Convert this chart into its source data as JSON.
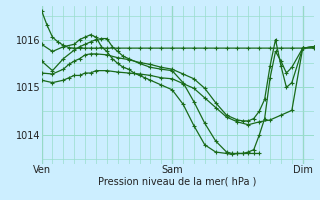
{
  "background_color": "#cceeff",
  "grid_color": "#99ddcc",
  "line_color": "#1a6b1a",
  "marker": "+",
  "marker_size": 3,
  "ylim": [
    1013.4,
    1016.7
  ],
  "yticks": [
    1014,
    1015,
    1016
  ],
  "xlabel": "Pression niveau de la mer( hPa )",
  "xtick_labels": [
    "Ven",
    "Sam",
    "Dim"
  ],
  "xtick_pos": [
    0,
    48,
    96
  ],
  "xlim": [
    0,
    100
  ],
  "vline_color": "#336633",
  "lines": [
    {
      "x": [
        0,
        2,
        4,
        6,
        8,
        10,
        12,
        14,
        16,
        18,
        20,
        24,
        28,
        32,
        36,
        40,
        44,
        48,
        52,
        56,
        60,
        64,
        68,
        72,
        76,
        80,
        84,
        88,
        92,
        96,
        100
      ],
      "y": [
        1016.6,
        1016.3,
        1016.05,
        1015.95,
        1015.88,
        1015.83,
        1015.82,
        1015.82,
        1015.82,
        1015.82,
        1015.82,
        1015.82,
        1015.82,
        1015.82,
        1015.82,
        1015.82,
        1015.82,
        1015.82,
        1015.82,
        1015.82,
        1015.82,
        1015.82,
        1015.82,
        1015.82,
        1015.82,
        1015.82,
        1015.82,
        1015.82,
        1015.82,
        1015.82,
        1015.82
      ]
    },
    {
      "x": [
        0,
        4,
        8,
        12,
        14,
        16,
        18,
        20,
        22,
        24,
        26,
        28,
        30,
        32,
        34,
        36,
        38,
        40,
        44,
        48,
        52,
        56,
        60,
        64,
        68,
        70,
        72,
        74,
        76,
        78,
        80
      ],
      "y": [
        1015.9,
        1015.75,
        1015.85,
        1015.9,
        1016.0,
        1016.05,
        1016.1,
        1016.05,
        1015.85,
        1015.75,
        1015.6,
        1015.5,
        1015.42,
        1015.38,
        1015.3,
        1015.25,
        1015.2,
        1015.15,
        1015.05,
        1014.95,
        1014.65,
        1014.2,
        1013.8,
        1013.65,
        1013.62,
        1013.6,
        1013.62,
        1013.62,
        1013.62,
        1013.62,
        1013.62
      ]
    },
    {
      "x": [
        0,
        4,
        8,
        12,
        14,
        16,
        18,
        20,
        22,
        24,
        26,
        28,
        30,
        32,
        36,
        40,
        44,
        48,
        52,
        56,
        60,
        64,
        68,
        70,
        72,
        74,
        76,
        78,
        80,
        82,
        84,
        86,
        88,
        90,
        92,
        96,
        100
      ],
      "y": [
        1015.55,
        1015.35,
        1015.6,
        1015.78,
        1015.85,
        1015.9,
        1015.95,
        1016.0,
        1016.02,
        1016.02,
        1015.85,
        1015.75,
        1015.65,
        1015.6,
        1015.5,
        1015.42,
        1015.38,
        1015.35,
        1015.1,
        1014.7,
        1014.25,
        1013.88,
        1013.65,
        1013.62,
        1013.62,
        1013.62,
        1013.65,
        1013.7,
        1014.0,
        1014.35,
        1015.2,
        1015.75,
        1015.55,
        1015.3,
        1015.42,
        1015.82,
        1015.85
      ]
    },
    {
      "x": [
        0,
        4,
        8,
        10,
        12,
        14,
        16,
        18,
        20,
        24,
        28,
        32,
        36,
        40,
        44,
        48,
        52,
        56,
        60,
        64,
        68,
        72,
        74,
        76,
        78,
        80,
        82,
        84,
        86,
        88,
        90,
        92,
        96,
        100
      ],
      "y": [
        1015.3,
        1015.28,
        1015.38,
        1015.48,
        1015.55,
        1015.6,
        1015.68,
        1015.7,
        1015.7,
        1015.68,
        1015.62,
        1015.58,
        1015.52,
        1015.48,
        1015.42,
        1015.38,
        1015.28,
        1015.18,
        1014.98,
        1014.68,
        1014.42,
        1014.32,
        1014.3,
        1014.3,
        1014.35,
        1014.5,
        1014.75,
        1015.45,
        1016.0,
        1015.45,
        1015.0,
        1015.1,
        1015.82,
        1015.85
      ]
    },
    {
      "x": [
        0,
        4,
        8,
        10,
        12,
        14,
        16,
        18,
        20,
        24,
        28,
        32,
        36,
        40,
        44,
        48,
        52,
        56,
        60,
        64,
        68,
        72,
        76,
        80,
        84,
        88,
        92,
        96,
        100
      ],
      "y": [
        1015.15,
        1015.1,
        1015.15,
        1015.2,
        1015.25,
        1015.25,
        1015.3,
        1015.3,
        1015.35,
        1015.35,
        1015.32,
        1015.3,
        1015.28,
        1015.25,
        1015.2,
        1015.18,
        1015.08,
        1014.98,
        1014.78,
        1014.58,
        1014.38,
        1014.28,
        1014.22,
        1014.28,
        1014.32,
        1014.42,
        1014.52,
        1015.82,
        1015.85
      ]
    }
  ]
}
